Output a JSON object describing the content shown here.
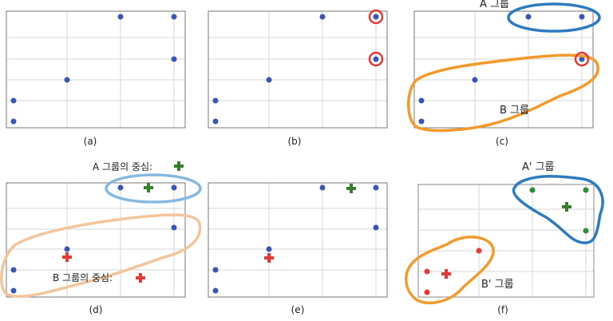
{
  "colors": {
    "point": "#3a56b4",
    "point_green": "#2e8b3a",
    "point_red": "#e53935",
    "highlight_ring": "#e53935",
    "group_a_outline": "#2f7bbf",
    "group_a_outline_light": "#86b8e0",
    "group_b_outline": "#f39a2d",
    "group_b_outline_light": "#f4c49a",
    "center_a": "#3a7d2e",
    "center_b": "#e53935",
    "grid": "#d7d7d7",
    "frame": "#777777"
  },
  "labels": {
    "a": "(a)",
    "b": "(b)",
    "c": "(c)",
    "d": "(d)",
    "e": "(e)",
    "f": "(f)",
    "group_a": "A 그룹",
    "group_b": "B 그룹",
    "center_a": "A 그룹의 중심:",
    "center_b": "B 그룹의 중심:",
    "group_a_prime": "A' 그룹",
    "group_b_prime": "B' 그룹"
  }
}
